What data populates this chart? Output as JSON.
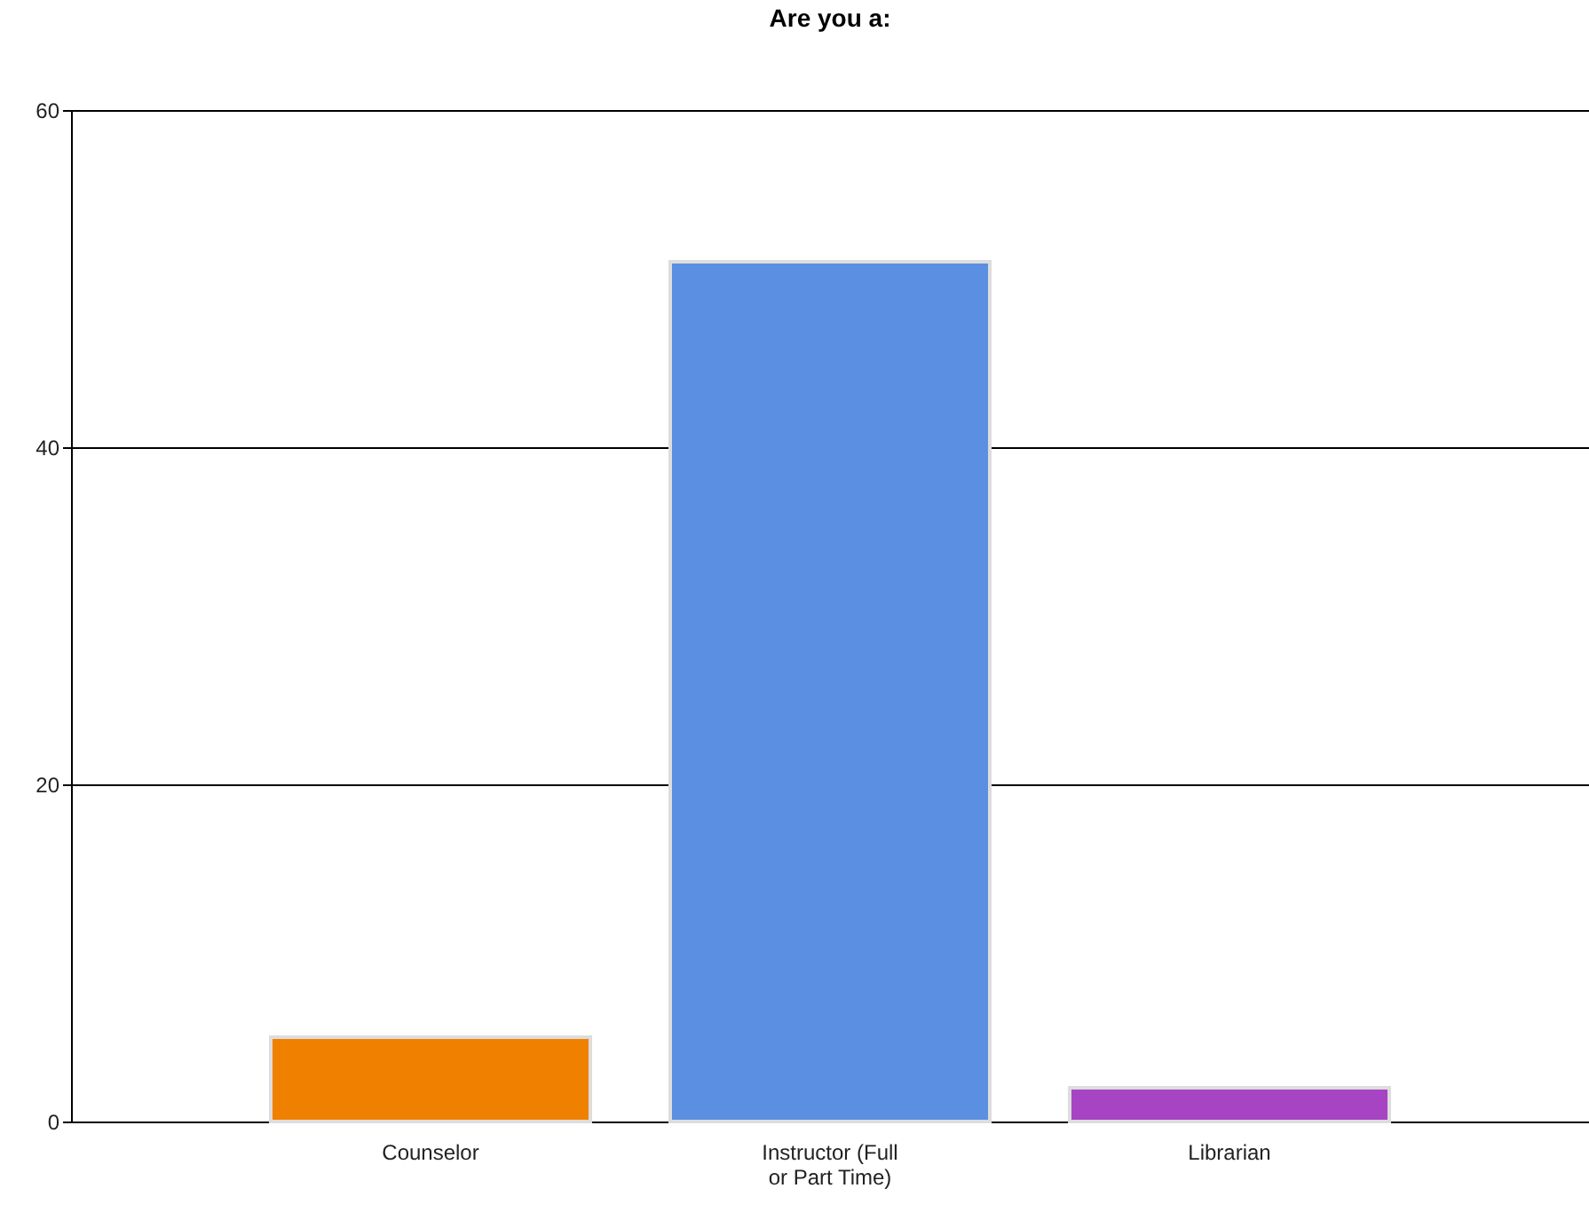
{
  "chart_data": {
    "type": "bar",
    "title": "Are you a:",
    "categories": [
      "Counselor",
      "Instructor (Full or Part Time)",
      "Librarian"
    ],
    "values": [
      5,
      51,
      2
    ],
    "colors": [
      "#f08000",
      "#5a8fe2",
      "#a644c4"
    ],
    "ylim": [
      0,
      60
    ],
    "yticks": [
      0,
      20,
      40,
      60
    ],
    "grid": "y"
  }
}
